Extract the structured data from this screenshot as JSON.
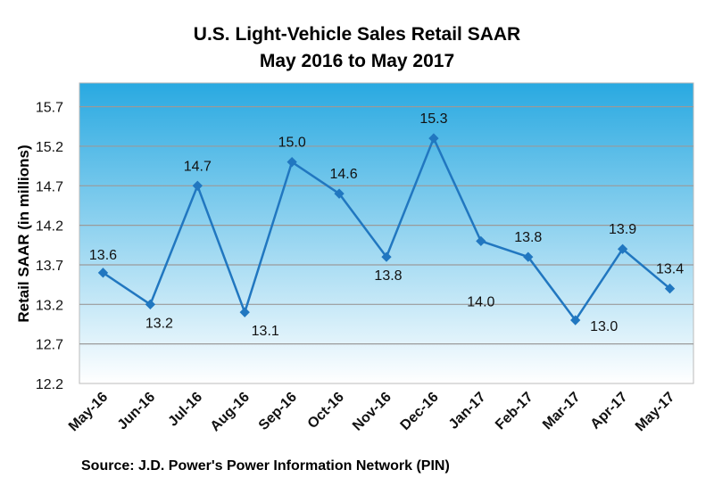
{
  "chart_data": {
    "type": "line",
    "title": "U.S. Light-Vehicle Sales Retail SAAR",
    "subtitle": "May 2016 to May 2017",
    "xlabel": "",
    "ylabel": "Retail SAAR (in millions)",
    "source": "Source: J.D. Power's Power Information Network (PIN)",
    "categories": [
      "May-16",
      "Jun-16",
      "Jul-16",
      "Aug-16",
      "Sep-16",
      "Oct-16",
      "Nov-16",
      "Dec-16",
      "Jan-17",
      "Feb-17",
      "Mar-17",
      "Apr-17",
      "May-17"
    ],
    "values": [
      13.6,
      13.2,
      14.7,
      13.1,
      15.0,
      14.6,
      13.8,
      15.3,
      14.0,
      13.8,
      13.0,
      13.9,
      13.4
    ],
    "data_labels": [
      "13.6",
      "13.2",
      "14.7",
      "13.1",
      "15.0",
      "14.6",
      "13.8",
      "15.3",
      "14.0",
      "13.8",
      "13.0",
      "13.9",
      "13.4"
    ],
    "yticks": [
      "12.2",
      "12.7",
      "13.2",
      "13.7",
      "14.2",
      "14.7",
      "15.2",
      "15.7"
    ],
    "ylim": [
      12.2,
      16.0
    ],
    "grid": true,
    "legend": "none",
    "colors": {
      "line": "#2177c0",
      "bg_top": "#29a9e1",
      "bg_bottom": "#ffffff",
      "grid": "#9a9a9a"
    }
  }
}
